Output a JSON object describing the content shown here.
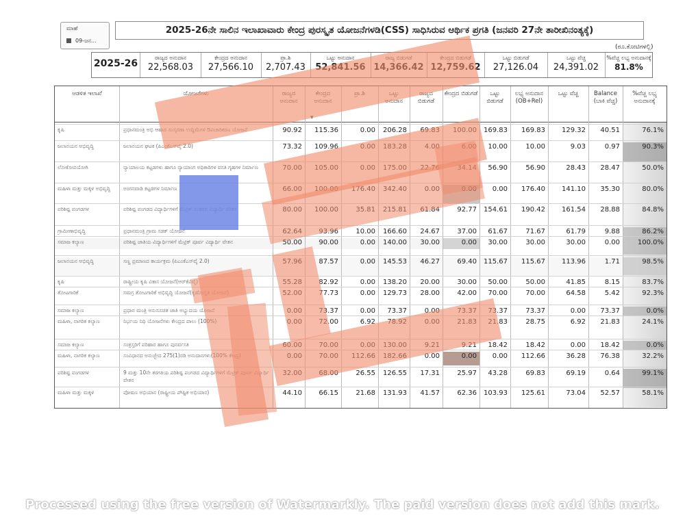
{
  "month_box": {
    "label": "ಮಾಹೆ",
    "value": "09-ಜನ..."
  },
  "title": "2025-26ನೇ ಸಾಲಿನ ಇಲಾಖಾವಾರು ಕೇಂದ್ರ ಪುರಸ್ಕೃತ ಯೋಜನೆಗಳಡಿ(CSS) ಸಾಧಿಸಿರುವ ಆರ್ಥಿಕ ಪ್ರಗತಿ (ಜನವರಿ 27ನೇ ತಾರೀಖಿನಂತ್ಯಕ್ಕೆ)",
  "units": "(ರೂ.ಕೋಟಿಗಳಲ್ಲಿ)",
  "summary": {
    "year": "2025-26",
    "cells": [
      {
        "label": "ರಾಜ್ಯದ ಅನುದಾನ",
        "value": "22,568.03"
      },
      {
        "label": "ಕೇಂದ್ರದ ಅನುದಾನ",
        "value": "27,566.10"
      },
      {
        "label": "ಪ್ರಾ.ಶಿ",
        "value": "2,707.43"
      },
      {
        "label": "ಒಟ್ಟು ಅನುದಾನ",
        "value": "52,841.56"
      },
      {
        "label": "ರಾಜ್ಯ ಬಿಡುಗಡೆ",
        "value": "14,366.42"
      },
      {
        "label": "ಕೇಂದ್ರದ ಬಿಡುಗಡೆ",
        "value": "12,759.62"
      },
      {
        "label": "ಒಟ್ಟು ಬಿಡುಗಡೆ",
        "value": "27,126.04"
      },
      {
        "label": "ಒಟ್ಟು ವೆಚ್ಚ",
        "value": "24,391.02"
      },
      {
        "label": "%ವೆಚ್ಚ ಲಭ್ಯ ಅನುದಾನಕ್ಕೆ",
        "value": "81.8%"
      }
    ]
  },
  "table": {
    "headers": [
      "ಆಡಳಿತ ಇಲಾಖೆ",
      "ಯೋಜನೆಗಳು",
      "ರಾಜ್ಯದ ಅನುದಾನ",
      "ಕೇಂದ್ರದ ಅನುದಾನ",
      "ಪ್ರಾ.ಶಿ",
      "ಒಟ್ಟು ಅನುದಾನ",
      "ರಾಜ್ಯದ ಬಿಡುಗಡೆ",
      "ಕೇಂದ್ರದ ಬಿಡುಗಡೆ",
      "ಒಟ್ಟು ಬಿಡುಗಡೆ",
      "ಲಭ್ಯ ಅನುದಾನ (OB+Rel)",
      "ಒಟ್ಟು ವೆಚ್ಚ",
      "Balance (ಬಾಕಿ ವೆಚ್ಚ)",
      "%ವೆಚ್ಚ ಲಭ್ಯ ಅನುದಾನಕ್ಕೆ"
    ],
    "rows": [
      {
        "dept": "ಕೃಷಿ",
        "scheme": "ಪ್ರಧಾನಮಂತ್ರಿ ಅಭಿ ಆಹಾರ ಸಂಸ್ಕರಣಾ ಉದ್ದಿಮೆಗಳ ಔಪಚಾರಿಕರಣ ಯೋಜನೆ",
        "v": [
          "90.92",
          "115.36",
          "0.00",
          "206.28",
          "69.83",
          "100.00",
          "169.83",
          "169.83",
          "129.32",
          "40.51",
          "76.1%"
        ]
      },
      {
        "dept": "ಜಲಾನಯನ ಅಭಿವೃದ್ಧಿ",
        "scheme": "ಜಲಾನಯನ ಘಟಕ (ಪಿಎಂಕೆಎಸ್‌ವೈ 2.0)",
        "v": [
          "73.32",
          "109.96",
          "0.00",
          "183.28",
          "4.00",
          "6.00",
          "10.00",
          "10.00",
          "9.03",
          "0.97",
          "90.3%"
        ]
      },
      {
        "dept": "ಲೋಕೋಪಯೋಗಿ",
        "scheme": "ನ್ಯಾಯಾಲಯ ಕಟ್ಟಡಗಳು ಹಾಗೂ ನ್ಯಾಯಾಂಗ ಅಧಿಕಾರಿಗಳ ವಸತಿ ಗೃಹಗಳ ನಿರ್ಮಾಣ",
        "v": [
          "70.00",
          "105.00",
          "0.00",
          "175.00",
          "22.76",
          "34.14",
          "56.90",
          "56.90",
          "28.43",
          "28.47",
          "50.0%"
        ]
      },
      {
        "dept": "ಮಹಿಳಾ ಮತ್ತು ಮಕ್ಕಳ ಅಭಿವೃದ್ಧಿ",
        "scheme": "ಅಂಗನವಾಡಿ ಕಟ್ಟಡಗಳ ನಿರ್ಮಾಣ",
        "v": [
          "66.00",
          "100.00",
          "176.40",
          "342.40",
          "0.00",
          "0.00",
          "0.00",
          "176.40",
          "141.10",
          "35.30",
          "80.0%"
        ]
      },
      {
        "dept": "ಪರಿಶಿಷ್ಟ ಪಂಗಡಗಳ",
        "scheme": "ಪರಿಶಿಷ್ಟ ಪಂಗಡದ ವಿದ್ಯಾರ್ಥಿಗಳಿಗೆ ಮೆಟ್ರಿಕ್ ನಂತರದ ವಿದ್ಯಾರ್ಥಿ ವೇತನ",
        "v": [
          "80.00",
          "100.00",
          "35.81",
          "215.81",
          "61.84",
          "92.77",
          "154.61",
          "190.42",
          "161.54",
          "28.88",
          "84.8%"
        ]
      },
      {
        "dept": "ಗ್ರಾಮೀಣಾಭಿವೃದ್ಧಿ",
        "scheme": "ಪ್ರಧಾನಮಂತ್ರಿ ಗ್ರಾಮ ಸಡಕ್ ಯೋಜನೆ",
        "v": [
          "62.64",
          "93.96",
          "10.00",
          "166.60",
          "24.67",
          "37.00",
          "61.67",
          "71.67",
          "61.79",
          "9.88",
          "86.2%"
        ]
      },
      {
        "dept": "ಸಮಾಜ ಕಲ್ಯಾಣ",
        "scheme": "ಪರಿಶಿಷ್ಟ ಜಾತಿಯ ವಿದ್ಯಾರ್ಥಿಗಳಿಗೆ ಮೆಟ್ರಿಕ್ ಪೂರ್ವ ವಿದ್ಯಾರ್ಥಿ ವೇತನ",
        "v": [
          "50.00",
          "90.00",
          "0.00",
          "140.00",
          "30.00",
          "0.00",
          "30.00",
          "30.00",
          "30.00",
          "0.00",
          "100.0%"
        ]
      },
      {
        "dept": "ಜಲಾನಯನ ಅಭಿವೃದ್ಧಿ",
        "scheme": "ಸಣ್ಣ ಪ್ರಮಾಣದ ಕಾರ್ಯಕ್ರಮ (ಪಿಎಂಕೆಎಸ್‌ವೈ 2.0)",
        "v": [
          "57.96",
          "87.57",
          "0.00",
          "145.53",
          "46.27",
          "69.40",
          "115.67",
          "115.67",
          "113.96",
          "1.71",
          "98.5%"
        ]
      },
      {
        "dept": "ಕೃಷಿ",
        "scheme": "ರಾಷ್ಟ್ರೀಯ ಕೃಷಿ ವಿಕಾಸ ಯೋಜನೆ(ಆರ್‌ಕೆವಿವೈ)",
        "v": [
          "55.28",
          "82.92",
          "0.00",
          "138.20",
          "20.00",
          "30.00",
          "50.00",
          "50.00",
          "41.85",
          "8.15",
          "83.7%"
        ]
      },
      {
        "dept": "ತೋಟಗಾರಿಕೆ",
        "scheme": "ಸಮಗ್ರ ತೋಟಗಾರಿಕೆ ಅಭಿವೃದ್ಧಿ ಯೋಜನೆ(ಕೃಷೋನ್ನತಿ ಯೋಜನೆ)",
        "v": [
          "52.00",
          "77.73",
          "0.00",
          "129.73",
          "28.00",
          "42.00",
          "70.00",
          "70.00",
          "64.58",
          "5.42",
          "92.3%"
        ]
      },
      {
        "dept": "ಸಮಾಜ ಕಲ್ಯಾಣ",
        "scheme": "ಪ್ರಧಾನ ಮಂತ್ರಿ ಅನುಸೂಚಿತ ಜಾತಿ ಅಭ್ಯುದಯ ಯೋಜನೆ",
        "v": [
          "0.00",
          "73.37",
          "0.00",
          "73.37",
          "0.00",
          "73.37",
          "73.37",
          "73.37",
          "0.00",
          "73.37",
          "0.0%"
        ]
      },
      {
        "dept": "ಮಹಿಳಾ, ನಾಗರಿಕ ಕಲ್ಯಾಣ",
        "scheme": "ನಿರ್ಭಯ ನಿಧಿ ಯೋಜನೆಗಳು ಕೇಂದ್ರದ ಪಾಲು (100%)",
        "v": [
          "0.00",
          "72.00",
          "6.92",
          "78.92",
          "0.00",
          "21.83",
          "21.83",
          "28.75",
          "6.92",
          "21.83",
          "24.1%"
        ]
      },
      {
        "dept": "ಸಮಾಜ ಕಲ್ಯಾಣ",
        "scheme": "ಸಂತ್ರಸ್ತರಿಗೆ ಪರಿಹಾರ ಹಾಗೂ ಪುನರ್ವಸತಿ",
        "v": [
          "60.00",
          "70.00",
          "0.00",
          "130.00",
          "9.21",
          "9.21",
          "18.42",
          "18.42",
          "0.00",
          "18.42",
          "0.0%"
        ]
      },
      {
        "dept": "ಮಹಿಳಾ, ನಾಗರಿಕ ಕಲ್ಯಾಣ",
        "scheme": "ಸಂವಿಧಾನದ ಅನುಚ್ಛೇದ 275(1)ರಡಿ ಅನುದಾನಗಳು(100% ಕೇಂದ್ರ)",
        "v": [
          "0.00",
          "70.00",
          "112.66",
          "182.66",
          "0.00",
          "0.00",
          "0.00",
          "112.66",
          "36.28",
          "76.38",
          "32.2%"
        ]
      },
      {
        "dept": "ಪರಿಶಿಷ್ಟ ಪಂಗಡಗಳ",
        "scheme": "9 ಮತ್ತು 10ನೇ ತರಗತಿಯ ಪರಿಶಿಷ್ಟ ಪಂಗಡದ ವಿದ್ಯಾರ್ಥಿಗಳಿಗೆ ಮೆಟ್ರಿಕ್ ಪೂರ್ವ ವಿದ್ಯಾರ್ಥಿ ವೇತನ",
        "v": [
          "32.00",
          "68.00",
          "26.55",
          "126.55",
          "17.31",
          "25.97",
          "43.28",
          "69.83",
          "69.19",
          "0.64",
          "99.1%"
        ]
      },
      {
        "dept": "ಮಹಿಳಾ ಮತ್ತು ಮಕ್ಕಳ",
        "scheme": "ಪೋಷಣ ಅಭಿಯಾನ (ರಾಷ್ಟ್ರೀಯ ಪೌಷ್ಟಿಕ ಅಭಿಯಾನ)",
        "v": [
          "44.10",
          "66.15",
          "21.68",
          "131.93",
          "41.57",
          "62.36",
          "103.93",
          "125.61",
          "73.04",
          "52.57",
          "58.1%"
        ]
      }
    ]
  },
  "colors": {
    "overlay_orange": "#f08a6a",
    "overlay_blue": "#6f86e6"
  },
  "watermark": "Processed using the free version of Watermarkly. The paid version does not add this mark."
}
